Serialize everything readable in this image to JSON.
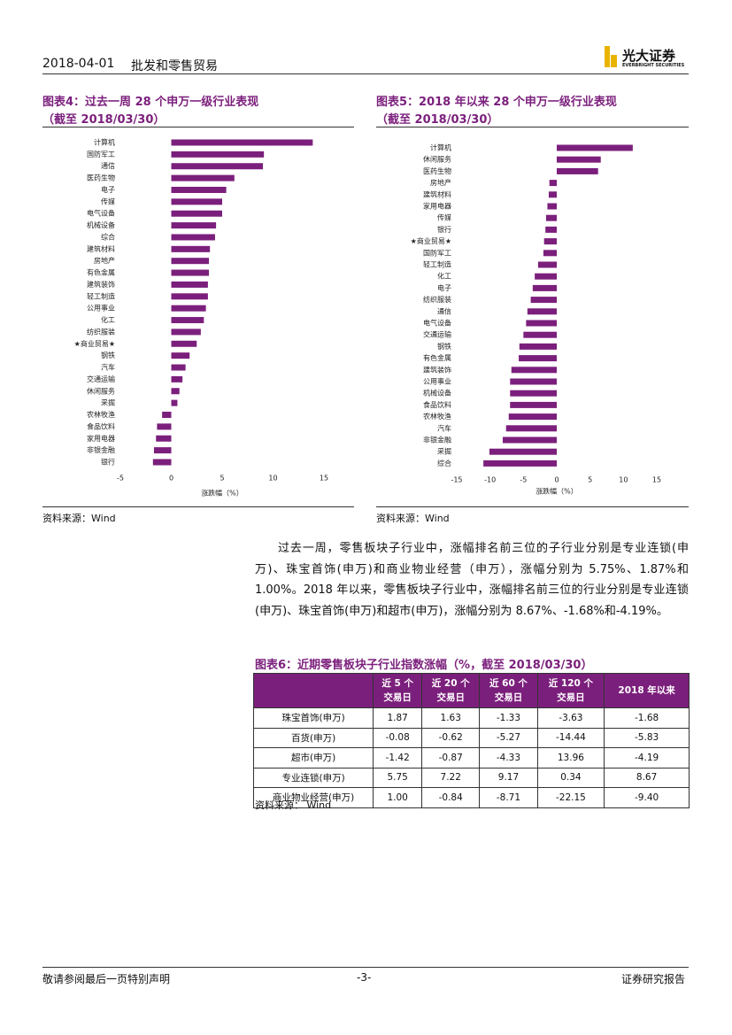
{
  "header": {
    "date": "2018-04-01",
    "section": "批发和零售贸易",
    "logo": "光大证券",
    "logo_en": "EVERBRIGHT SECURITIES"
  },
  "chart_data": [
    {
      "type": "barh",
      "title": "图表4：过去一周 28 个申万一级行业表现",
      "subtitle": "（截至 2018/03/30）",
      "categories": [
        "计算机",
        "国防军工",
        "通信",
        "医药生物",
        "电子",
        "传媒",
        "电气设备",
        "机械设备",
        "综合",
        "建筑材料",
        "房地产",
        "有色金属",
        "建筑装饰",
        "轻工制造",
        "公用事业",
        "化工",
        "纺织服装",
        "★商业贸易★",
        "钢铁",
        "汽车",
        "交通运输",
        "休闲服务",
        "采掘",
        "农林牧渔",
        "食品饮料",
        "家用电器",
        "非银金融",
        "银行"
      ],
      "values": [
        13.9,
        9.1,
        9.0,
        6.2,
        5.4,
        5.0,
        5.0,
        4.4,
        4.3,
        3.8,
        3.7,
        3.7,
        3.6,
        3.6,
        3.4,
        3.2,
        2.9,
        2.5,
        1.8,
        1.4,
        1.1,
        0.8,
        0.6,
        -0.9,
        -1.4,
        -1.5,
        -1.7,
        -1.8
      ],
      "color": "#7b1f7c",
      "xlim": [
        -5,
        15
      ],
      "xticks": [
        -5,
        0,
        5,
        10,
        15
      ],
      "xlabel": "涨跌幅（%）",
      "source": "资料来源：Wind"
    },
    {
      "type": "barh",
      "title": "图表5：2018 年以来 28 个申万一级行业表现",
      "subtitle": "（截至 2018/03/30）",
      "categories": [
        "计算机",
        "休闲服务",
        "医药生物",
        "房地产",
        "建筑材料",
        "家用电器",
        "传媒",
        "银行",
        "★商业贸易★",
        "国防军工",
        "轻工制造",
        "化工",
        "电子",
        "纺织服装",
        "通信",
        "电气设备",
        "交通运输",
        "钢铁",
        "有色金属",
        "建筑装饰",
        "公用事业",
        "机械设备",
        "食品饮料",
        "农林牧渔",
        "汽车",
        "非银金融",
        "采掘",
        "综合"
      ],
      "values": [
        11.4,
        6.6,
        6.2,
        -1.1,
        -1.2,
        -1.4,
        -1.6,
        -1.7,
        -1.9,
        -2.0,
        -2.8,
        -3.3,
        -3.6,
        -3.9,
        -4.4,
        -4.6,
        -5.0,
        -5.6,
        -5.7,
        -6.8,
        -7.0,
        -7.0,
        -7.0,
        -7.2,
        -7.6,
        -8.1,
        -10.1,
        -11.0
      ],
      "color": "#7b1f7c",
      "xlim": [
        -15,
        15
      ],
      "xticks": [
        -15,
        -10,
        -5,
        0,
        5,
        10,
        15
      ],
      "xlabel": "涨跌幅（%）",
      "source": "资料来源：Wind"
    }
  ],
  "body": {
    "paragraph": "过去一周，零售板块子行业中，涨幅排名前三位的子行业分别是专业连锁(申万)、珠宝首饰(申万)和商业物业经营（申万），涨幅分别为 5.75%、1.87%和 1.00%。2018 年以来，零售板块子行业中，涨幅排名前三位的行业分别是专业连锁(申万)、珠宝首饰(申万)和超市(申万)，涨幅分别为 8.67%、-1.68%和-4.19%。"
  },
  "table": {
    "title": "图表6：近期零售板块子行业指数涨幅（%，截至 2018/03/30）",
    "header": [
      "",
      "近 5 个\n交易日",
      "近 20 个\n交易日",
      "近 60 个\n交易日",
      "近 120 个\n交易日",
      "2018 年以来"
    ],
    "rows": [
      [
        "珠宝首饰(申万)",
        "1.87",
        "1.63",
        "-1.33",
        "-3.63",
        "-1.68"
      ],
      [
        "百货(申万)",
        "-0.08",
        "-0.62",
        "-5.27",
        "-14.44",
        "-5.83"
      ],
      [
        "超市(申万)",
        "-1.42",
        "-0.87",
        "-4.33",
        "13.96",
        "-4.19"
      ],
      [
        "专业连锁(申万)",
        "5.75",
        "7.22",
        "9.17",
        "0.34",
        "8.67"
      ],
      [
        "商业物业经营(申万)",
        "1.00",
        "-0.84",
        "-8.71",
        "-22.15",
        "-9.40"
      ]
    ],
    "source": "资料来源：  Wind"
  },
  "footer": {
    "left": "敬请参阅最后一页特别声明",
    "page": "-3-",
    "right": "证券研究报告"
  }
}
